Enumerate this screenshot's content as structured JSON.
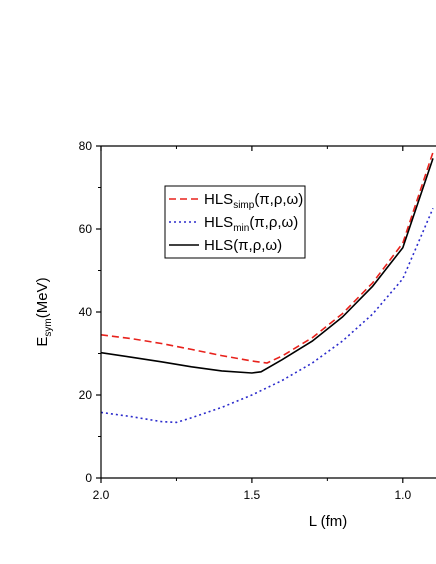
{
  "chart_data": {
    "type": "line",
    "title": "",
    "xlabel": "L (fm)",
    "ylabel_main": "E",
    "ylabel_sub": "sym",
    "ylabel_unit": "(MeV)",
    "x_reversed": true,
    "xlim": [
      2.0,
      0.89
    ],
    "ylim": [
      0,
      80
    ],
    "xticks": [
      2.0,
      1.5,
      1.0
    ],
    "xtick_labels": [
      "2.0",
      "1.5",
      "1.0"
    ],
    "yticks": [
      0,
      20,
      40,
      60,
      80
    ],
    "ytick_labels": [
      "0",
      "20",
      "40",
      "60",
      "80"
    ],
    "legend_position": "upper-left",
    "series": [
      {
        "name": "HLSsimp(π,ρ,ω)",
        "legend_main": "HLS",
        "legend_sub": "simp",
        "legend_args": "(π,ρ,ω)",
        "color": "#e8221c",
        "style": "dashed",
        "points": [
          [
            2.0,
            34.5
          ],
          [
            1.9,
            33.6
          ],
          [
            1.8,
            32.4
          ],
          [
            1.7,
            31.0
          ],
          [
            1.6,
            29.5
          ],
          [
            1.5,
            28.2
          ],
          [
            1.45,
            27.7
          ],
          [
            1.4,
            29.4
          ],
          [
            1.3,
            33.8
          ],
          [
            1.2,
            39.6
          ],
          [
            1.1,
            47.0
          ],
          [
            1.0,
            56.6
          ],
          [
            0.9,
            78.5
          ]
        ]
      },
      {
        "name": "HLSmin(π,ρ,ω)",
        "legend_main": "HLS",
        "legend_sub": "min",
        "legend_args": "(π,ρ,ω)",
        "color": "#2b2bcc",
        "style": "dotted",
        "points": [
          [
            2.0,
            15.8
          ],
          [
            1.9,
            14.8
          ],
          [
            1.8,
            13.6
          ],
          [
            1.75,
            13.4
          ],
          [
            1.7,
            14.5
          ],
          [
            1.6,
            17.0
          ],
          [
            1.5,
            20.0
          ],
          [
            1.4,
            23.5
          ],
          [
            1.3,
            27.7
          ],
          [
            1.2,
            33.0
          ],
          [
            1.1,
            39.5
          ],
          [
            1.0,
            48.0
          ],
          [
            0.9,
            65.0
          ]
        ]
      },
      {
        "name": "HLS(π,ρ,ω)",
        "legend_main": "HLS",
        "legend_sub": "",
        "legend_args": "(π,ρ,ω)",
        "color": "#000000",
        "style": "solid",
        "points": [
          [
            2.0,
            30.2
          ],
          [
            1.9,
            29.1
          ],
          [
            1.8,
            28.0
          ],
          [
            1.7,
            26.8
          ],
          [
            1.6,
            25.8
          ],
          [
            1.5,
            25.3
          ],
          [
            1.47,
            25.6
          ],
          [
            1.4,
            28.5
          ],
          [
            1.3,
            33.0
          ],
          [
            1.2,
            38.8
          ],
          [
            1.1,
            46.2
          ],
          [
            1.0,
            55.5
          ],
          [
            0.9,
            77.0
          ]
        ]
      }
    ]
  }
}
